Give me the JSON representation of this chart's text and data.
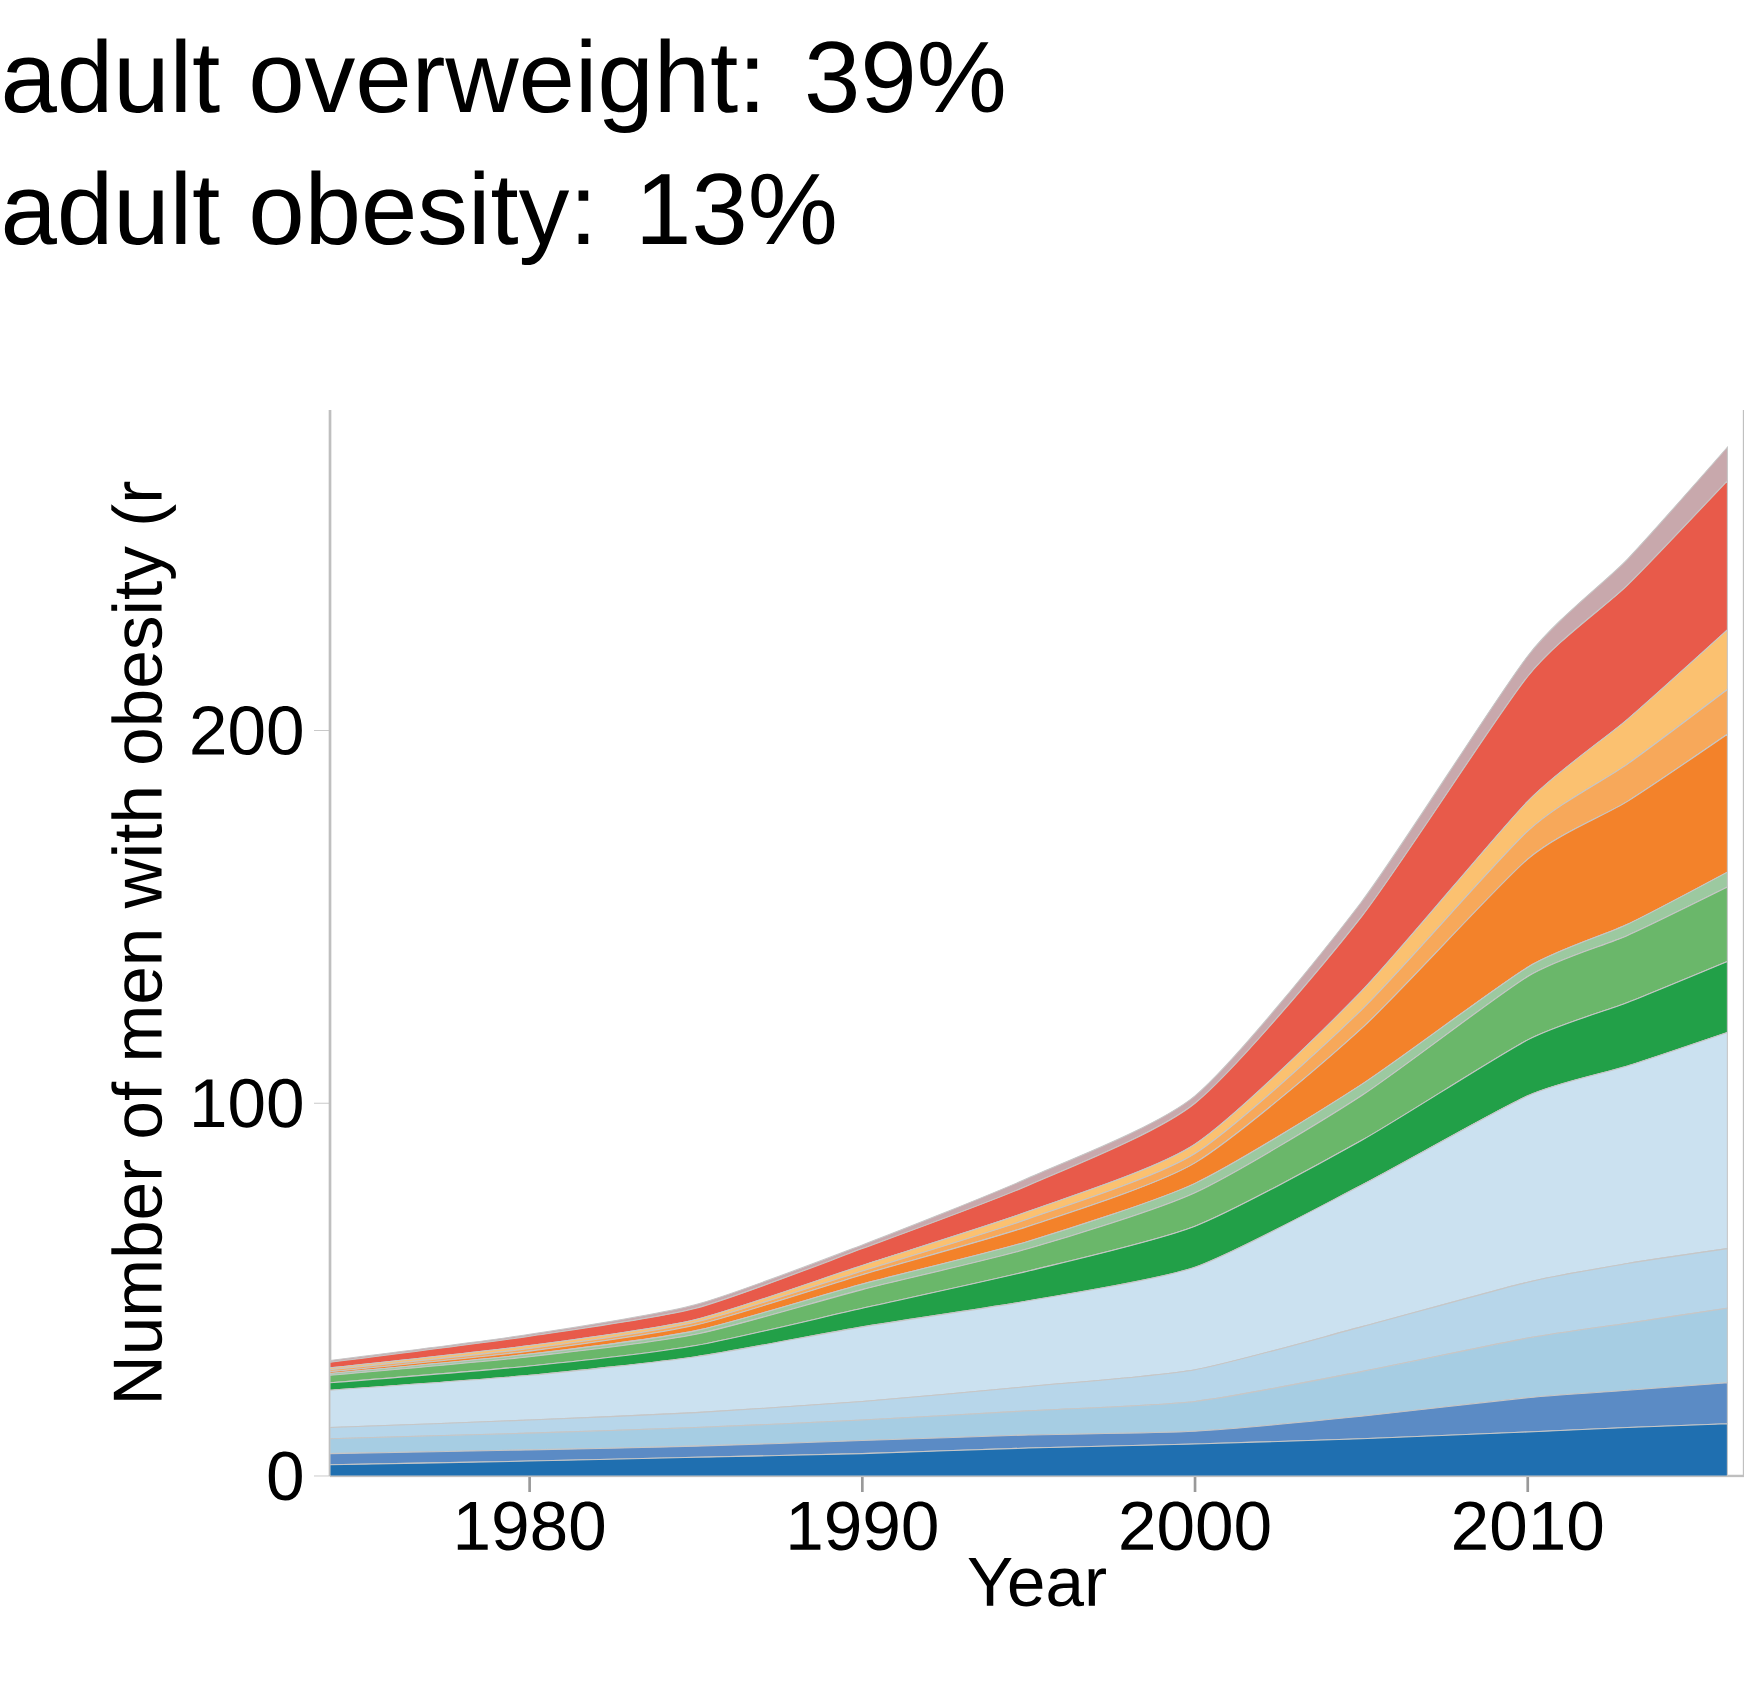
{
  "chart_data": {
    "type": "area",
    "stacked": true,
    "title": "adult overweight: 39%",
    "subtitle": "adult obesity: 13%",
    "xlabel": "Year",
    "ylabel": "Number of men with obesity (r",
    "x": [
      1974,
      1980,
      1985,
      1990,
      1995,
      2000,
      2005,
      2010,
      2013,
      2016
    ],
    "xlim": [
      1974,
      2016.5
    ],
    "ylim": [
      0,
      286
    ],
    "xticks": [
      1980,
      1990,
      2000,
      2010
    ],
    "yticks": [
      0,
      100,
      200
    ],
    "series": [
      {
        "color": "#1f6fb0",
        "values": [
          3,
          4,
          5,
          6,
          7.5,
          8.6,
          10,
          11.8,
          13,
          14
        ]
      },
      {
        "color": "#5b8bc5",
        "values": [
          3,
          3,
          3,
          3.5,
          3.5,
          3.4,
          6,
          9.2,
          10,
          11
        ]
      },
      {
        "color": "#a6cde3",
        "values": [
          4,
          4.5,
          5,
          5.5,
          6.5,
          8,
          12,
          16,
          18,
          20
        ]
      },
      {
        "color": "#b7d6ea",
        "values": [
          3,
          3.5,
          4,
          5,
          6.5,
          8.5,
          12,
          15,
          16,
          16
        ]
      },
      {
        "color": "#cbe1f0",
        "values": [
          10,
          12,
          15,
          20,
          23,
          27.5,
          38,
          50,
          53,
          58
        ]
      },
      {
        "color": "#22a048",
        "values": [
          2,
          2.5,
          3,
          5,
          8,
          11,
          12,
          15,
          17,
          19
        ]
      },
      {
        "color": "#6ab76a",
        "values": [
          2,
          2.5,
          3,
          5,
          6,
          9,
          12,
          17,
          18,
          20
        ]
      },
      {
        "color": "#9cc9a0",
        "values": [
          0.5,
          0.7,
          1,
          1.5,
          2,
          2.5,
          3,
          2.5,
          3,
          4
        ]
      },
      {
        "color": "#f3822a",
        "values": [
          0.5,
          0.8,
          1.5,
          2.5,
          4,
          5.5,
          15,
          29,
          33,
          37
        ]
      },
      {
        "color": "#f7a85a",
        "values": [
          0.5,
          0.7,
          0.8,
          1,
          2,
          2.5,
          5,
          7.5,
          10,
          12
        ]
      },
      {
        "color": "#fbc170",
        "values": [
          0.5,
          0.8,
          0.7,
          1.5,
          2,
          2.5,
          5,
          8,
          12,
          16
        ]
      },
      {
        "color": "#e85a4a",
        "values": [
          1.5,
          2.5,
          3,
          4.5,
          7,
          11,
          20,
          33.5,
          36,
          40
        ]
      },
      {
        "color": "#c8a8ac",
        "values": [
          0.5,
          0.5,
          1,
          1,
          2,
          2,
          4,
          5.5,
          7,
          9
        ]
      }
    ]
  }
}
